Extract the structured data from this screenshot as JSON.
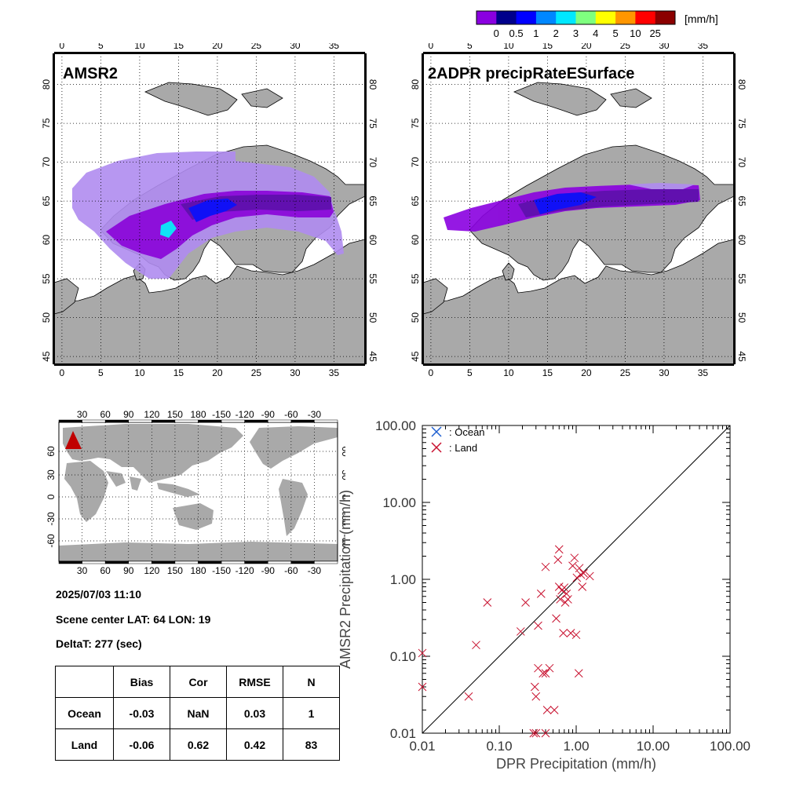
{
  "colorbar": {
    "unit": "[mm/h]",
    "labels": [
      "0",
      "0.5",
      "1",
      "2",
      "3",
      "4",
      "5",
      "10",
      "25"
    ],
    "colors": [
      "#8a00e0",
      "#00008b",
      "#0000ff",
      "#0087ff",
      "#00e8ff",
      "#7fff7f",
      "#ffff00",
      "#ff9600",
      "#ff0000",
      "#8b0000"
    ]
  },
  "colors": {
    "land": "#a9a9a9",
    "ocean": "#ffffff",
    "precip_light": "#b08cf0",
    "precip_mid": "#8a00e0",
    "precip_dark": "#5a00b0",
    "ocean_marker": "#1f5fd0",
    "land_marker": "#c8102e",
    "scene_marker": "#c00000"
  },
  "panels": {
    "amsr2": {
      "title": "AMSR2"
    },
    "dpr": {
      "title": "2ADPR precipRateESurface"
    }
  },
  "map_axes": {
    "lon_ticks": [
      "0",
      "5",
      "10",
      "15",
      "20",
      "25",
      "30",
      "35"
    ],
    "lat_ticks": [
      "45",
      "50",
      "55",
      "60",
      "65",
      "70",
      "75",
      "80"
    ]
  },
  "world_map": {
    "top_ticks": [
      "30",
      "60",
      "90",
      "120",
      "150",
      "180",
      "-150",
      "-120",
      "-90",
      "-60",
      "-30"
    ],
    "bottom_ticks": [
      "30",
      "60",
      "90",
      "120",
      "150",
      "180",
      "-150",
      "-120",
      "-90",
      "-60",
      "-30"
    ],
    "left_ticks": [
      "60",
      "30",
      "0",
      "-30",
      "-60"
    ],
    "right_ticks": [
      "60",
      "30",
      "0",
      "-30",
      "-60"
    ]
  },
  "scene": {
    "datetime": "2025/07/03 11:10",
    "center_label": "Scene center LAT: 64   LON:  19",
    "delta_label": "DeltaT:  277 (sec)"
  },
  "stats_table": {
    "headers": [
      "",
      "Bias",
      "Cor",
      "RMSE",
      "N"
    ],
    "rows": [
      [
        "Ocean",
        "-0.03",
        "NaN",
        "0.03",
        "1"
      ],
      [
        "Land",
        "-0.06",
        "0.62",
        "0.42",
        "83"
      ]
    ]
  },
  "chart_data": {
    "type": "scatter",
    "xlabel": "DPR Precipitation (mm/h)",
    "ylabel": "AMSR2 Precipitation (mm/h)",
    "xscale": "log",
    "yscale": "log",
    "xlim": [
      0.01,
      100
    ],
    "ylim": [
      0.01,
      100
    ],
    "x_ticks": [
      "0.01",
      "0.10",
      "1.00",
      "10.00",
      "100.00"
    ],
    "y_ticks": [
      "0.01",
      "0.10",
      "1.00",
      "10.00",
      "100.00"
    ],
    "one_to_one_line": true,
    "legend_position": "top-left",
    "series": [
      {
        "name": ": Ocean",
        "color": "#1f5fd0",
        "points": []
      },
      {
        "name": ": Land",
        "color": "#c8102e",
        "points": [
          [
            0.01,
            0.11
          ],
          [
            0.01,
            0.04
          ],
          [
            0.04,
            0.03
          ],
          [
            0.05,
            0.14
          ],
          [
            0.07,
            0.5
          ],
          [
            0.19,
            0.21
          ],
          [
            0.22,
            0.5
          ],
          [
            0.29,
            0.04
          ],
          [
            0.3,
            0.03
          ],
          [
            0.32,
            0.25
          ],
          [
            0.32,
            0.07
          ],
          [
            0.35,
            0.65
          ],
          [
            0.37,
            0.06
          ],
          [
            0.4,
            1.45
          ],
          [
            0.4,
            0.06
          ],
          [
            0.45,
            0.07
          ],
          [
            0.52,
            0.02
          ],
          [
            0.55,
            0.31
          ],
          [
            0.58,
            1.8
          ],
          [
            0.6,
            2.45
          ],
          [
            0.6,
            0.8
          ],
          [
            0.62,
            0.55
          ],
          [
            0.65,
            0.72
          ],
          [
            0.68,
            0.2
          ],
          [
            0.7,
            0.78
          ],
          [
            0.72,
            0.5
          ],
          [
            0.75,
            0.65
          ],
          [
            0.78,
            0.55
          ],
          [
            0.85,
            0.2
          ],
          [
            0.9,
            1.5
          ],
          [
            0.95,
            1.9
          ],
          [
            1.0,
            0.19
          ],
          [
            1.02,
            1.05
          ],
          [
            1.08,
            0.06
          ],
          [
            1.1,
            1.4
          ],
          [
            1.15,
            1.15
          ],
          [
            1.2,
            0.8
          ],
          [
            1.25,
            1.2
          ],
          [
            1.5,
            1.1
          ],
          [
            0.42,
            0.02
          ],
          [
            0.3,
            0.01
          ],
          [
            0.28,
            0.01
          ],
          [
            0.4,
            0.01
          ]
        ]
      }
    ]
  }
}
